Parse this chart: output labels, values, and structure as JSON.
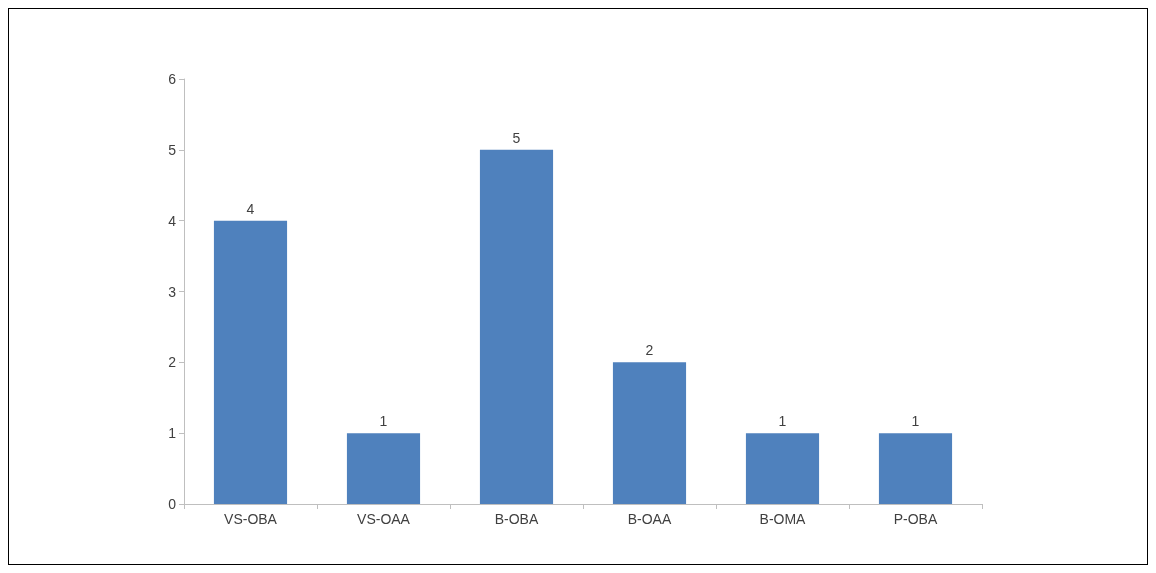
{
  "chart_data": {
    "type": "bar",
    "categories": [
      "VS-OBA",
      "VS-OAA",
      "B-OBA",
      "B-OAA",
      "B-OMA",
      "P-OBA"
    ],
    "values": [
      4,
      1,
      5,
      2,
      1,
      1
    ],
    "color": "#4f81bd",
    "ylim": [
      0,
      6
    ],
    "yticks": [
      0,
      1,
      2,
      3,
      4,
      5,
      6
    ],
    "data_labels": true,
    "grid": false
  }
}
